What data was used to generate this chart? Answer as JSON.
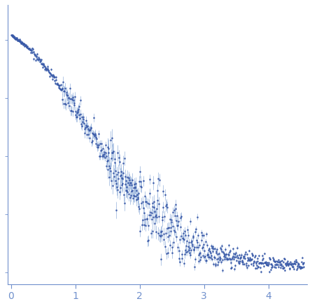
{
  "title": "",
  "xlabel": "",
  "ylabel": "",
  "xlim": [
    -0.05,
    4.6
  ],
  "ylim": [
    -0.05,
    1.15
  ],
  "point_color": "#3a5aa8",
  "error_color": "#8aaad8",
  "axis_color": "#7090cc",
  "tick_color": "#7090cc",
  "background_color": "#ffffff",
  "seed": 42
}
